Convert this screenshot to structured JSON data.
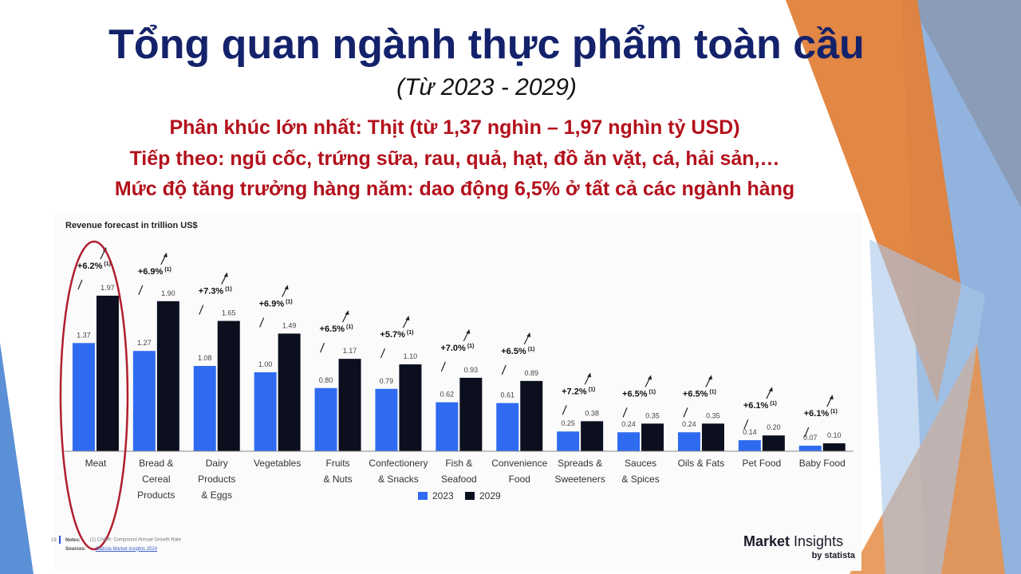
{
  "slide": {
    "title": "Tổng quan ngành thực phẩm toàn cầu",
    "subtitle": "(Từ 2023 - 2029)",
    "headline_1": "Phân khúc lớn nhất: Thịt (từ 1,37 nghìn – 1,97 nghìn tỷ USD)",
    "headline_2": "Tiếp theo: ngũ cốc, trứng sữa, rau, quả, hạt, đồ ăn vặt, cá, hải sản,…",
    "headline_3": "Mức độ tăng trưởng hàng năm: dao động 6,5% ở tất cả các ngành hàng",
    "page_number": "19",
    "notes_label": "Notes:",
    "notes_text": "(1) CAGR: Compound Annual Growth Rate",
    "sources_label": "Sources:",
    "sources_text": "Statista Market Insights 2024",
    "brand_part1": "Market",
    "brand_part2": " Insights",
    "brand_by": "by statista"
  },
  "colors": {
    "title": "#14226b",
    "headline": "#b3111c",
    "series_2023": "#2f6bf0",
    "series_2029": "#0b0f1e",
    "highlight_ring": "#b01e2e",
    "accent_orange": "#e2813a",
    "accent_blue": "#7fa6d8"
  },
  "chart_data": {
    "type": "bar",
    "title": "Revenue forecast in trillion US$",
    "categories": [
      [
        "Meat"
      ],
      [
        "Bread &",
        "Cereal",
        "Products"
      ],
      [
        "Dairy",
        "Products",
        "& Eggs"
      ],
      [
        "Vegetables"
      ],
      [
        "Fruits",
        "& Nuts"
      ],
      [
        "Confectionery",
        "& Snacks"
      ],
      [
        "Fish &",
        "Seafood"
      ],
      [
        "Convenience",
        "Food"
      ],
      [
        "Spreads &",
        "Sweeteners"
      ],
      [
        "Sauces",
        "& Spices"
      ],
      [
        "Oils & Fats"
      ],
      [
        "Pet Food"
      ],
      [
        "Baby Food"
      ]
    ],
    "series": [
      {
        "name": "2023",
        "values": [
          1.37,
          1.27,
          1.08,
          1.0,
          0.8,
          0.79,
          0.62,
          0.61,
          0.25,
          0.24,
          0.24,
          0.14,
          0.07
        ],
        "labels": [
          "1.37",
          "1.27",
          "1.08",
          "1.00",
          "0.80",
          "0.79",
          "0.62",
          "0.61",
          "0.25",
          "0.24",
          "0.24",
          "0.14",
          "0.07"
        ]
      },
      {
        "name": "2029",
        "values": [
          1.97,
          1.9,
          1.65,
          1.49,
          1.17,
          1.1,
          0.93,
          0.89,
          0.38,
          0.35,
          0.35,
          0.2,
          0.1
        ],
        "labels": [
          "1.97",
          "1.90",
          "1.65",
          "1.49",
          "1.17",
          "1.10",
          "0.93",
          "0.89",
          "0.38",
          "0.35",
          "0.35",
          "0.20",
          "0.10"
        ]
      }
    ],
    "cagr": [
      "+6.2%",
      "+6.9%",
      "+7.3%",
      "+6.9%",
      "+6.5%",
      "+5.7%",
      "+7.0%",
      "+6.5%",
      "+7.2%",
      "+6.5%",
      "+6.5%",
      "+6.1%",
      "+6.1%"
    ],
    "cagr_note": "(1)",
    "ylim": [
      0,
      2.1
    ],
    "grid": false,
    "legend": "bottom-center",
    "highlighted_category": "Meat"
  }
}
